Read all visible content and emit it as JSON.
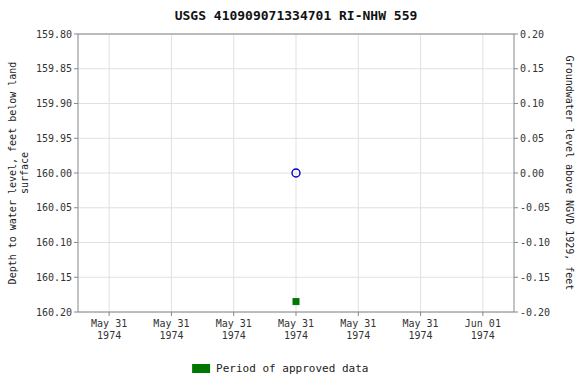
{
  "chart_data": {
    "type": "scatter",
    "title": "USGS 410909071334701 RI-NHW  559",
    "categories": [
      "May 31\n1974",
      "May 31\n1974",
      "May 31\n1974",
      "May 31\n1974",
      "May 31\n1974",
      "May 31\n1974",
      "Jun 01\n1974"
    ],
    "ylabel": "Depth to water level, feet below land\nsurface",
    "y2label": "Groundwater level above NGVD 1929, feet",
    "ylim": [
      160.2,
      159.8
    ],
    "yticks": [
      {
        "value": 159.8,
        "label": "159.80"
      },
      159.85,
      {
        "value": 159.9,
        "label": "159.90"
      },
      159.95,
      {
        "value": 160,
        "label": "160.00"
      },
      160.05,
      {
        "value": 160.1,
        "label": "160.10"
      },
      160.15,
      {
        "value": 160.2,
        "label": "160.20"
      }
    ],
    "y2lim": [
      -0.2,
      0.2
    ],
    "y2ticks": [
      {
        "value": 0.2,
        "label": "0.20"
      },
      0.15,
      {
        "value": 0.1,
        "label": "0.10"
      },
      0.05,
      {
        "value": 0,
        "label": "0.00"
      },
      -0.05,
      {
        "value": -0.1,
        "label": "-0.10"
      },
      -0.15,
      {
        "value": -0.2,
        "label": "-0.20"
      }
    ],
    "grid": true,
    "legend": "bottom",
    "series": [
      {
        "color": "#0000cc",
        "marker": "circle",
        "values": [
          null,
          null,
          null,
          160.0,
          null,
          null,
          null
        ]
      },
      {
        "name": "Period of approved data",
        "color": "#007700",
        "marker": "square",
        "values": [
          null,
          null,
          null,
          160.185,
          null,
          null,
          null
        ]
      }
    ]
  }
}
